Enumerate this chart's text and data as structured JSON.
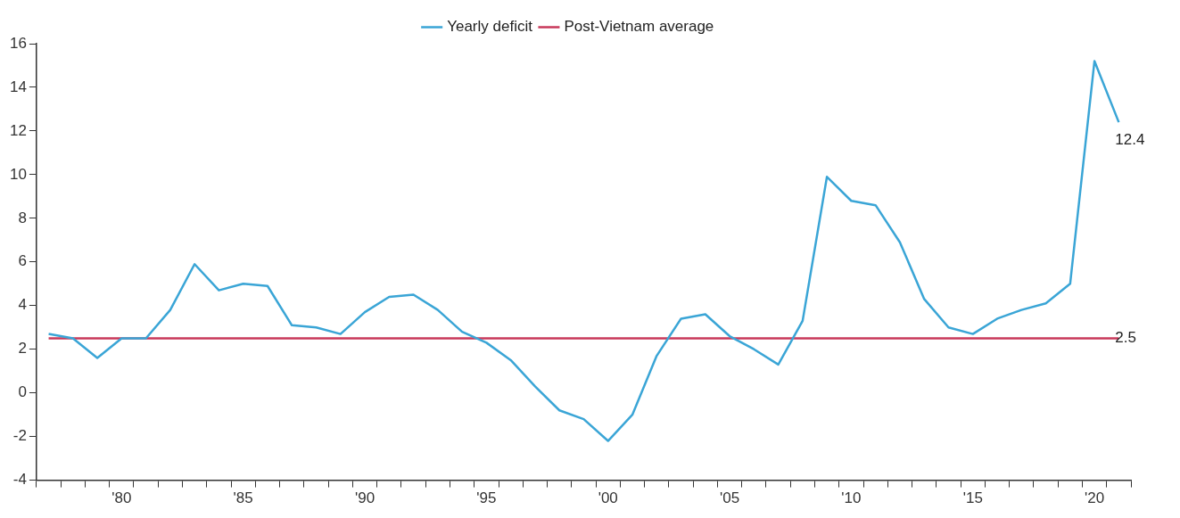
{
  "chart_data": {
    "type": "line",
    "categories": [
      null,
      null,
      null,
      "'80",
      null,
      null,
      null,
      null,
      "'85",
      null,
      null,
      null,
      null,
      "'90",
      null,
      null,
      null,
      null,
      "'95",
      null,
      null,
      null,
      null,
      "'00",
      null,
      null,
      null,
      null,
      "'05",
      null,
      null,
      null,
      null,
      "'10",
      null,
      null,
      null,
      null,
      "'15",
      null,
      null,
      null,
      null,
      "'20",
      null
    ],
    "series": [
      {
        "name": "Yearly deficit",
        "color": "#3aa5d6",
        "values": [
          2.7,
          2.5,
          1.6,
          2.5,
          2.5,
          3.8,
          5.9,
          4.7,
          5.0,
          4.9,
          3.1,
          3.0,
          2.7,
          3.7,
          4.4,
          4.5,
          3.8,
          2.8,
          2.3,
          1.5,
          0.3,
          -0.8,
          -1.2,
          -2.2,
          -1.0,
          1.7,
          3.4,
          3.6,
          2.6,
          2.0,
          1.3,
          3.3,
          9.9,
          8.8,
          8.6,
          6.9,
          4.3,
          3.0,
          2.7,
          3.4,
          3.8,
          4.1,
          5.0,
          15.2,
          12.4
        ],
        "value_labels": [
          null,
          null,
          null,
          null,
          null,
          null,
          null,
          null,
          null,
          null,
          null,
          null,
          null,
          null,
          null,
          null,
          null,
          null,
          null,
          null,
          null,
          null,
          null,
          null,
          null,
          null,
          null,
          null,
          null,
          null,
          null,
          null,
          null,
          null,
          null,
          null,
          null,
          null,
          null,
          null,
          null,
          null,
          null,
          null,
          "12.4"
        ]
      },
      {
        "name": "Post-Vietnam average",
        "color": "#c8385a",
        "values": [
          2.5,
          2.5,
          2.5,
          2.5,
          2.5,
          2.5,
          2.5,
          2.5,
          2.5,
          2.5,
          2.5,
          2.5,
          2.5,
          2.5,
          2.5,
          2.5,
          2.5,
          2.5,
          2.5,
          2.5,
          2.5,
          2.5,
          2.5,
          2.5,
          2.5,
          2.5,
          2.5,
          2.5,
          2.5,
          2.5,
          2.5,
          2.5,
          2.5,
          2.5,
          2.5,
          2.5,
          2.5,
          2.5,
          2.5,
          2.5,
          2.5,
          2.5,
          2.5,
          2.5,
          2.5
        ],
        "value_labels": [
          null,
          null,
          null,
          null,
          null,
          null,
          null,
          null,
          null,
          null,
          null,
          null,
          null,
          null,
          null,
          null,
          null,
          null,
          null,
          null,
          null,
          null,
          null,
          null,
          null,
          null,
          null,
          null,
          null,
          null,
          null,
          null,
          null,
          null,
          null,
          null,
          null,
          null,
          null,
          null,
          null,
          null,
          null,
          null,
          "2.5"
        ]
      }
    ],
    "ylim": [
      -4,
      16
    ],
    "yticks": [
      -4,
      -2,
      0,
      2,
      4,
      6,
      8,
      10,
      12,
      14,
      16
    ],
    "grid": false,
    "legend": "top",
    "marker": "none",
    "line_style": "solid"
  }
}
